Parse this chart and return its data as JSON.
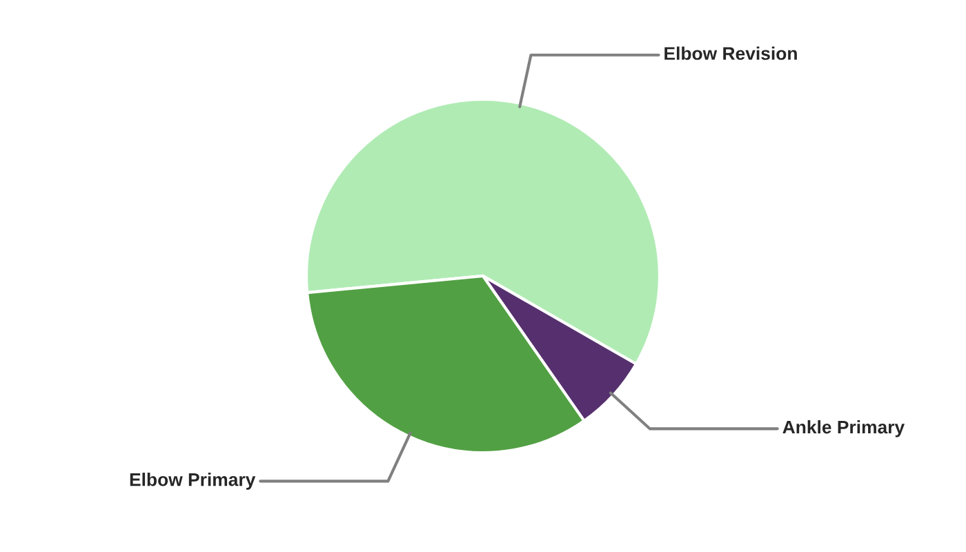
{
  "chart_data": {
    "type": "pie",
    "categories": [
      "Elbow Revision",
      "Ankle Primary",
      "Elbow Primary"
    ],
    "values": [
      59.8,
      7.0,
      33.2
    ],
    "colors": [
      "#b0ebb4",
      "#56306e",
      "#52a044"
    ]
  }
}
